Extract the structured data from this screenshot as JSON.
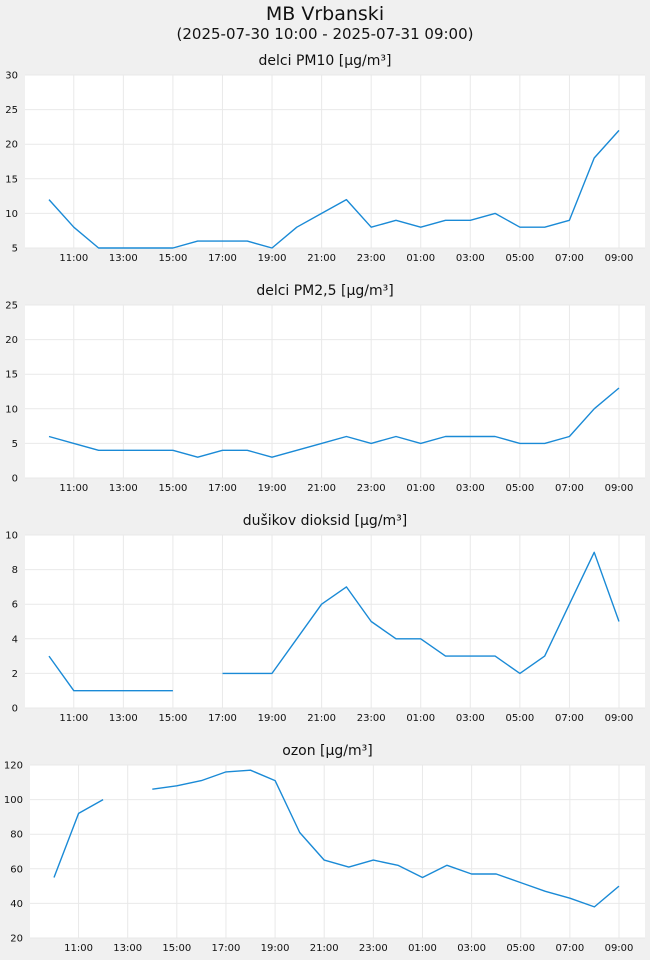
{
  "title": "MB Vrbanski",
  "subtitle": "(2025-07-30 10:00 - 2025-07-31 09:00)",
  "colors": {
    "line": "#1a8ad6",
    "plot_bg": "#ffffff",
    "page_bg": "#f0f0f0",
    "grid": "#e9e9e9"
  },
  "chart_data": [
    {
      "type": "line",
      "title": "delci PM10 [µg/m³]",
      "x": [
        "10:00",
        "11:00",
        "12:00",
        "13:00",
        "14:00",
        "15:00",
        "16:00",
        "17:00",
        "18:00",
        "19:00",
        "20:00",
        "21:00",
        "22:00",
        "23:00",
        "00:00",
        "01:00",
        "02:00",
        "03:00",
        "04:00",
        "05:00",
        "06:00",
        "07:00",
        "08:00",
        "09:00"
      ],
      "xtick_labels": [
        "11:00",
        "13:00",
        "15:00",
        "17:00",
        "19:00",
        "21:00",
        "23:00",
        "01:00",
        "03:00",
        "05:00",
        "07:00",
        "09:00"
      ],
      "series": [
        {
          "values": [
            12,
            8,
            5,
            5,
            5,
            5,
            6,
            6,
            6,
            5,
            8,
            10,
            12,
            8,
            9,
            8,
            9,
            9,
            10,
            8,
            8,
            9,
            18,
            22
          ]
        }
      ],
      "ylim": [
        5,
        30
      ],
      "yticks": [
        5,
        10,
        15,
        20,
        25,
        30
      ],
      "grid": true
    },
    {
      "type": "line",
      "title": "delci PM2,5 [µg/m³]",
      "x": [
        "10:00",
        "11:00",
        "12:00",
        "13:00",
        "14:00",
        "15:00",
        "16:00",
        "17:00",
        "18:00",
        "19:00",
        "20:00",
        "21:00",
        "22:00",
        "23:00",
        "00:00",
        "01:00",
        "02:00",
        "03:00",
        "04:00",
        "05:00",
        "06:00",
        "07:00",
        "08:00",
        "09:00"
      ],
      "xtick_labels": [
        "11:00",
        "13:00",
        "15:00",
        "17:00",
        "19:00",
        "21:00",
        "23:00",
        "01:00",
        "03:00",
        "05:00",
        "07:00",
        "09:00"
      ],
      "series": [
        {
          "values": [
            6,
            5,
            4,
            4,
            4,
            4,
            3,
            4,
            4,
            3,
            4,
            5,
            6,
            5,
            6,
            5,
            6,
            6,
            6,
            5,
            5,
            6,
            10,
            13
          ]
        }
      ],
      "ylim": [
        0,
        25
      ],
      "yticks": [
        0,
        5,
        10,
        15,
        20,
        25
      ],
      "grid": true
    },
    {
      "type": "line",
      "title": "dušikov dioksid [µg/m³]",
      "x": [
        "10:00",
        "11:00",
        "12:00",
        "13:00",
        "14:00",
        "15:00",
        "16:00",
        "17:00",
        "18:00",
        "19:00",
        "20:00",
        "21:00",
        "22:00",
        "23:00",
        "00:00",
        "01:00",
        "02:00",
        "03:00",
        "04:00",
        "05:00",
        "06:00",
        "07:00",
        "08:00",
        "09:00"
      ],
      "xtick_labels": [
        "11:00",
        "13:00",
        "15:00",
        "17:00",
        "19:00",
        "21:00",
        "23:00",
        "01:00",
        "03:00",
        "05:00",
        "07:00",
        "09:00"
      ],
      "series": [
        {
          "values": [
            3,
            1,
            1,
            1,
            1,
            1,
            null,
            2,
            2,
            2,
            4,
            6,
            7,
            5,
            4,
            4,
            3,
            3,
            3,
            2,
            3,
            6,
            9,
            5
          ]
        }
      ],
      "ylim": [
        0,
        10
      ],
      "yticks": [
        0,
        2,
        4,
        6,
        8,
        10
      ],
      "grid": true
    },
    {
      "type": "line",
      "title": "ozon [µg/m³]",
      "x": [
        "10:00",
        "11:00",
        "12:00",
        "13:00",
        "14:00",
        "15:00",
        "16:00",
        "17:00",
        "18:00",
        "19:00",
        "20:00",
        "21:00",
        "22:00",
        "23:00",
        "00:00",
        "01:00",
        "02:00",
        "03:00",
        "04:00",
        "05:00",
        "06:00",
        "07:00",
        "08:00",
        "09:00"
      ],
      "xtick_labels": [
        "11:00",
        "13:00",
        "15:00",
        "17:00",
        "19:00",
        "21:00",
        "23:00",
        "01:00",
        "03:00",
        "05:00",
        "07:00",
        "09:00"
      ],
      "series": [
        {
          "values": [
            55,
            92,
            100,
            null,
            106,
            108,
            111,
            116,
            117,
            111,
            81,
            65,
            61,
            65,
            62,
            55,
            62,
            57,
            57,
            52,
            47,
            43,
            38,
            50
          ]
        }
      ],
      "ylim": [
        20,
        120
      ],
      "yticks": [
        20,
        40,
        60,
        80,
        100,
        120
      ],
      "grid": true
    }
  ]
}
